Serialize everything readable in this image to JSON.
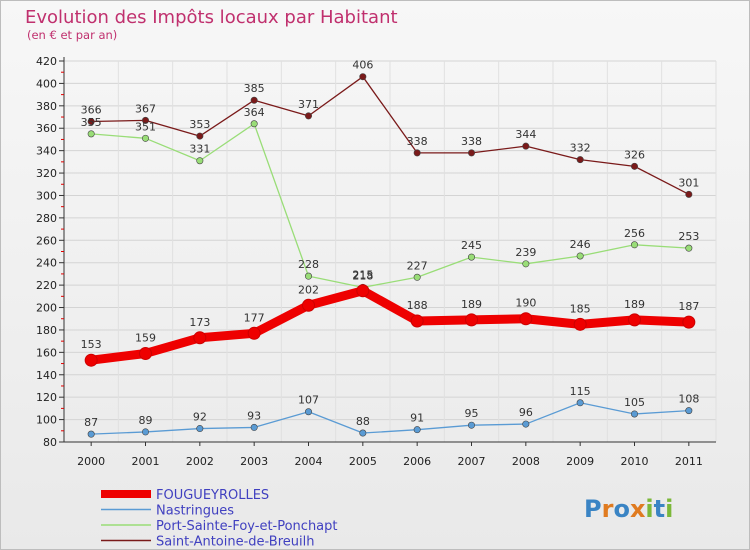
{
  "chart_data": {
    "type": "line",
    "title": "Evolution des Impôts locaux par Habitant",
    "subtitle": "(en € et par an)",
    "categories": [
      "2000",
      "2001",
      "2002",
      "2003",
      "2004",
      "2005",
      "2006",
      "2007",
      "2008",
      "2009",
      "2010",
      "2011"
    ],
    "yticks": [
      80,
      100,
      120,
      140,
      160,
      180,
      200,
      220,
      240,
      260,
      280,
      300,
      320,
      340,
      360,
      380,
      400,
      420
    ],
    "ylim": [
      80,
      420
    ],
    "grid": true,
    "legend_position": "bottom-left",
    "series": [
      {
        "name": "FOUGUEYROLLES",
        "color": "#ee0000",
        "values": [
          153,
          159,
          173,
          177,
          202,
          215,
          188,
          189,
          190,
          185,
          189,
          187
        ]
      },
      {
        "name": "Nastringues",
        "color": "#5a9bd4",
        "values": [
          87,
          89,
          92,
          93,
          107,
          88,
          91,
          95,
          96,
          115,
          105,
          108
        ]
      },
      {
        "name": "Port-Sainte-Foy-et-Ponchapt",
        "color": "#99dd77",
        "values": [
          355,
          351,
          331,
          364,
          228,
          218,
          227,
          245,
          239,
          246,
          256,
          253
        ]
      },
      {
        "name": "Saint-Antoine-de-Breuilh",
        "color": "#7a1a1a",
        "values": [
          366,
          367,
          353,
          385,
          371,
          406,
          338,
          338,
          344,
          332,
          326,
          301
        ]
      }
    ]
  },
  "logo": {
    "text": "Proxiti",
    "letters": [
      "P",
      "r",
      "o",
      "x",
      "i",
      "t",
      "i"
    ],
    "colors": [
      "#3a84c4",
      "#e07b20",
      "#3a84c4",
      "#e07b20",
      "#7cb83a",
      "#3a84c4",
      "#7cb83a"
    ]
  }
}
